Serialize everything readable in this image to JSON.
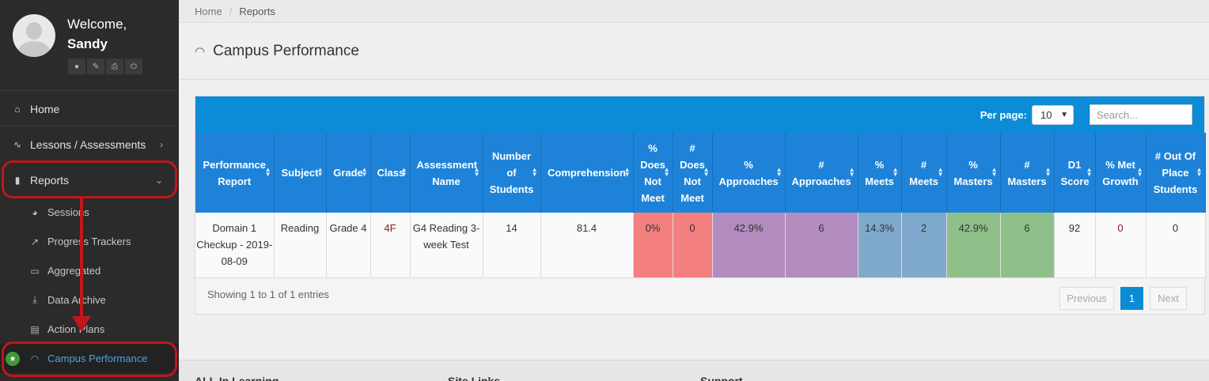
{
  "profile": {
    "welcome": "Welcome,",
    "name": "Sandy",
    "tools": [
      "user-icon",
      "wrench-icon",
      "print-icon",
      "power-icon"
    ]
  },
  "nav": {
    "home": "Home",
    "lessons": "Lessons / Assessments",
    "reports": "Reports",
    "sub": {
      "sessions": "Sessions",
      "progress": "Progress Trackers",
      "aggregated": "Aggregated",
      "archive": "Data Archive",
      "action": "Action Plans",
      "campus": "Campus Performance"
    }
  },
  "breadcrumb": {
    "home": "Home",
    "sep": "/",
    "current": "Reports"
  },
  "page": {
    "title": "Campus Performance"
  },
  "controls": {
    "per_page_label": "Per page:",
    "per_page_value": "10",
    "search_placeholder": "Search..."
  },
  "table": {
    "headers": [
      "Performance Report",
      "Subject",
      "Grade",
      "Class",
      "Assessment Name",
      "Number of Students",
      "Comprehension",
      "% Does Not Meet",
      "# Does Not Meet",
      "% Approaches",
      "# Approaches",
      "% Meets",
      "# Meets",
      "% Masters",
      "# Masters",
      "D1 Score",
      "% Met Growth",
      "# Out Of Place Students"
    ],
    "rows": [
      [
        "Domain 1 Checkup - 2019-08-09",
        "Reading",
        "Grade 4",
        "4F",
        "G4 Reading 3-week Test",
        "14",
        "81.4",
        "0%",
        "0",
        "42.9%",
        "6",
        "14.3%",
        "2",
        "42.9%",
        "6",
        "92",
        "0",
        "0"
      ]
    ]
  },
  "info": "Showing 1 to 1 of 1 entries",
  "pagination": {
    "prev": "Previous",
    "page": "1",
    "next": "Next"
  },
  "footer": {
    "col1": "ALL In Learning",
    "col2": "Site Links",
    "col3": "Support"
  },
  "colors": {
    "accent": "#0c8bd6",
    "header": "#1e83d8",
    "not_meet": "#f47f7f",
    "approaches": "#b28cbe",
    "meets": "#7fa9cc",
    "masters": "#8fc08a",
    "annotation": "#c0171a"
  }
}
